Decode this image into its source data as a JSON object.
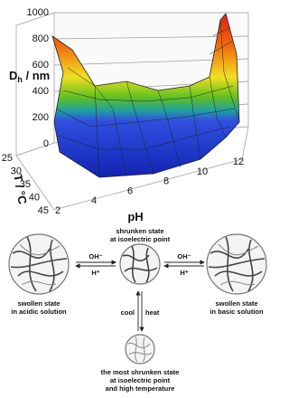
{
  "plot": {
    "z_label": "D",
    "z_label_sub": "h",
    "z_label_unit": " / nm",
    "z_ticks": [
      0,
      200,
      400,
      600,
      800,
      1000
    ],
    "t_label": "T / °C",
    "t_ticks": [
      25,
      30,
      35,
      40,
      45
    ],
    "ph_label": "pH",
    "ph_ticks": [
      2,
      4,
      6,
      8,
      10,
      12
    ]
  },
  "diagram": {
    "left_state": [
      "swollen state",
      "in acidic solution"
    ],
    "center_state": [
      "shrunken state",
      "at  isoelectric point"
    ],
    "right_state": [
      "swollen state",
      "in basic solution"
    ],
    "bottom_state": [
      "the most shrunken state",
      "at  isoelectric point",
      "and high temperature"
    ],
    "left_arrow": [
      "OH⁻",
      "H⁺"
    ],
    "right_arrow": [
      "OH⁻",
      "H⁺"
    ],
    "vertical_arrow": [
      "cool",
      "heat"
    ]
  }
}
